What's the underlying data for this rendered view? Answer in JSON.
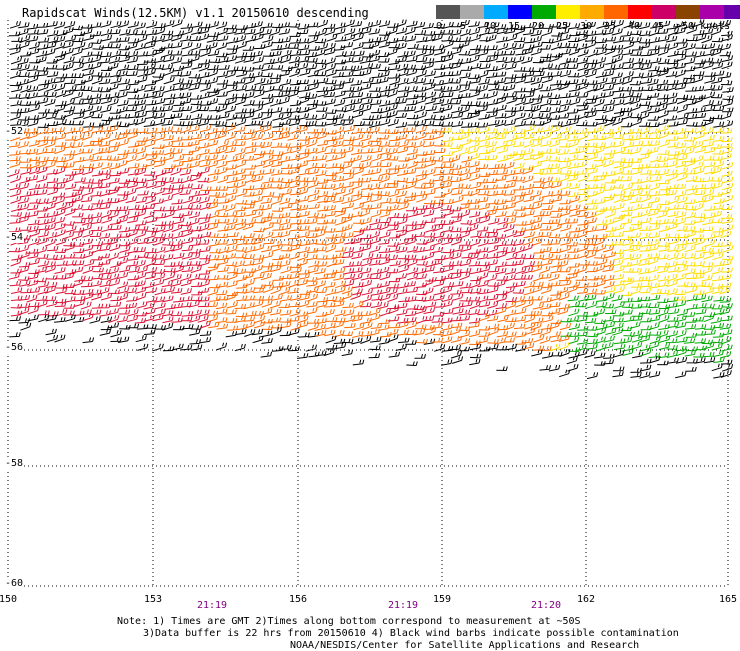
{
  "title": "Rapidscat Winds(12.5KM) v1.1 20150610 descending",
  "legend": {
    "colors": [
      "#555555",
      "#aaaaaa",
      "#00aaff",
      "#0000ff",
      "#00aa00",
      "#ffee00",
      "#ffaa00",
      "#ff6600",
      "#ff0000",
      "#cc0066",
      "#884400",
      "#aa00aa",
      "#6600aa"
    ],
    "labels": [
      "0",
      "5",
      "10",
      "15",
      "20",
      "25",
      "30",
      "35",
      "40",
      "45",
      ">50 knots"
    ]
  },
  "axes": {
    "longitudes": [
      "150",
      "153",
      "156",
      "159",
      "162",
      "165"
    ],
    "latitudes": [
      "-52",
      "-54",
      "-56",
      "-58",
      "-60"
    ]
  },
  "times": [
    "21:19",
    "21:19",
    "21:20"
  ],
  "notes": {
    "line1": "Note: 1) Times are GMT 2)Times along bottom correspond to measurement at ~50S",
    "line2": "3)Data buffer is 22 hrs from 20150610 4) Black wind barbs indicate possible contamination",
    "line3": "NOAA/NESDIS/Center for Satellite Applications and Research"
  },
  "wind_palette": {
    "black": "#000000",
    "red": "#dd1133",
    "orange": "#ff6a00",
    "yellow": "#ffdd00",
    "green": "#00aa00"
  }
}
